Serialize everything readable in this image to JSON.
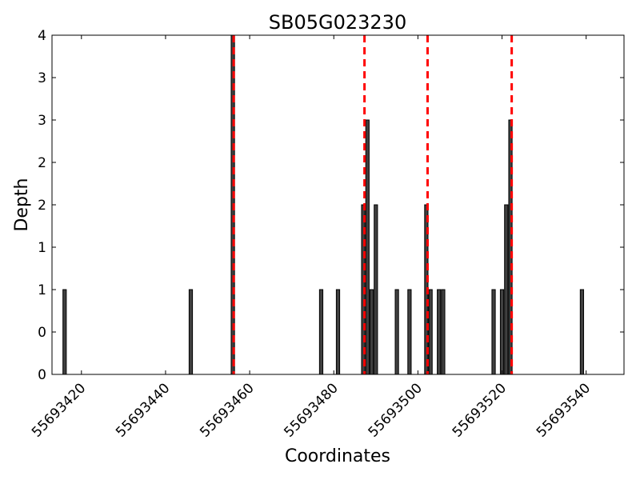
{
  "chart_data": {
    "type": "bar",
    "title": "SB05G023230",
    "xlabel": "Coordinates",
    "ylabel": "Depth",
    "xlim": [
      55693413,
      55693549
    ],
    "ylim": [
      0,
      4
    ],
    "x_ticks": [
      55693420,
      55693440,
      55693460,
      55693480,
      55693500,
      55693520,
      55693540
    ],
    "y_ticks": [
      0,
      0.5,
      1,
      1.5,
      2,
      2.5,
      3,
      3.5,
      4
    ],
    "y_tick_labels": [
      "0",
      "0",
      "1",
      "1",
      "2",
      "2",
      "3",
      "3",
      "4"
    ],
    "grid": false,
    "bar_color": "#404040",
    "marker_color": "#ff0000",
    "bars": [
      {
        "x": 55693416,
        "y": 1
      },
      {
        "x": 55693446,
        "y": 1
      },
      {
        "x": 55693456,
        "y": 4
      },
      {
        "x": 55693477,
        "y": 1
      },
      {
        "x": 55693481,
        "y": 1
      },
      {
        "x": 55693487,
        "y": 2
      },
      {
        "x": 55693488,
        "y": 3
      },
      {
        "x": 55693489,
        "y": 1
      },
      {
        "x": 55693490,
        "y": 2
      },
      {
        "x": 55693495,
        "y": 1
      },
      {
        "x": 55693498,
        "y": 1
      },
      {
        "x": 55693502,
        "y": 2
      },
      {
        "x": 55693503,
        "y": 1
      },
      {
        "x": 55693505,
        "y": 1
      },
      {
        "x": 55693506,
        "y": 1
      },
      {
        "x": 55693518,
        "y": 1
      },
      {
        "x": 55693520,
        "y": 1
      },
      {
        "x": 55693521,
        "y": 2
      },
      {
        "x": 55693522,
        "y": 3
      },
      {
        "x": 55693539,
        "y": 1
      }
    ],
    "markers": [
      55693456.2,
      55693487.3,
      55693502.3,
      55693522.3
    ]
  }
}
